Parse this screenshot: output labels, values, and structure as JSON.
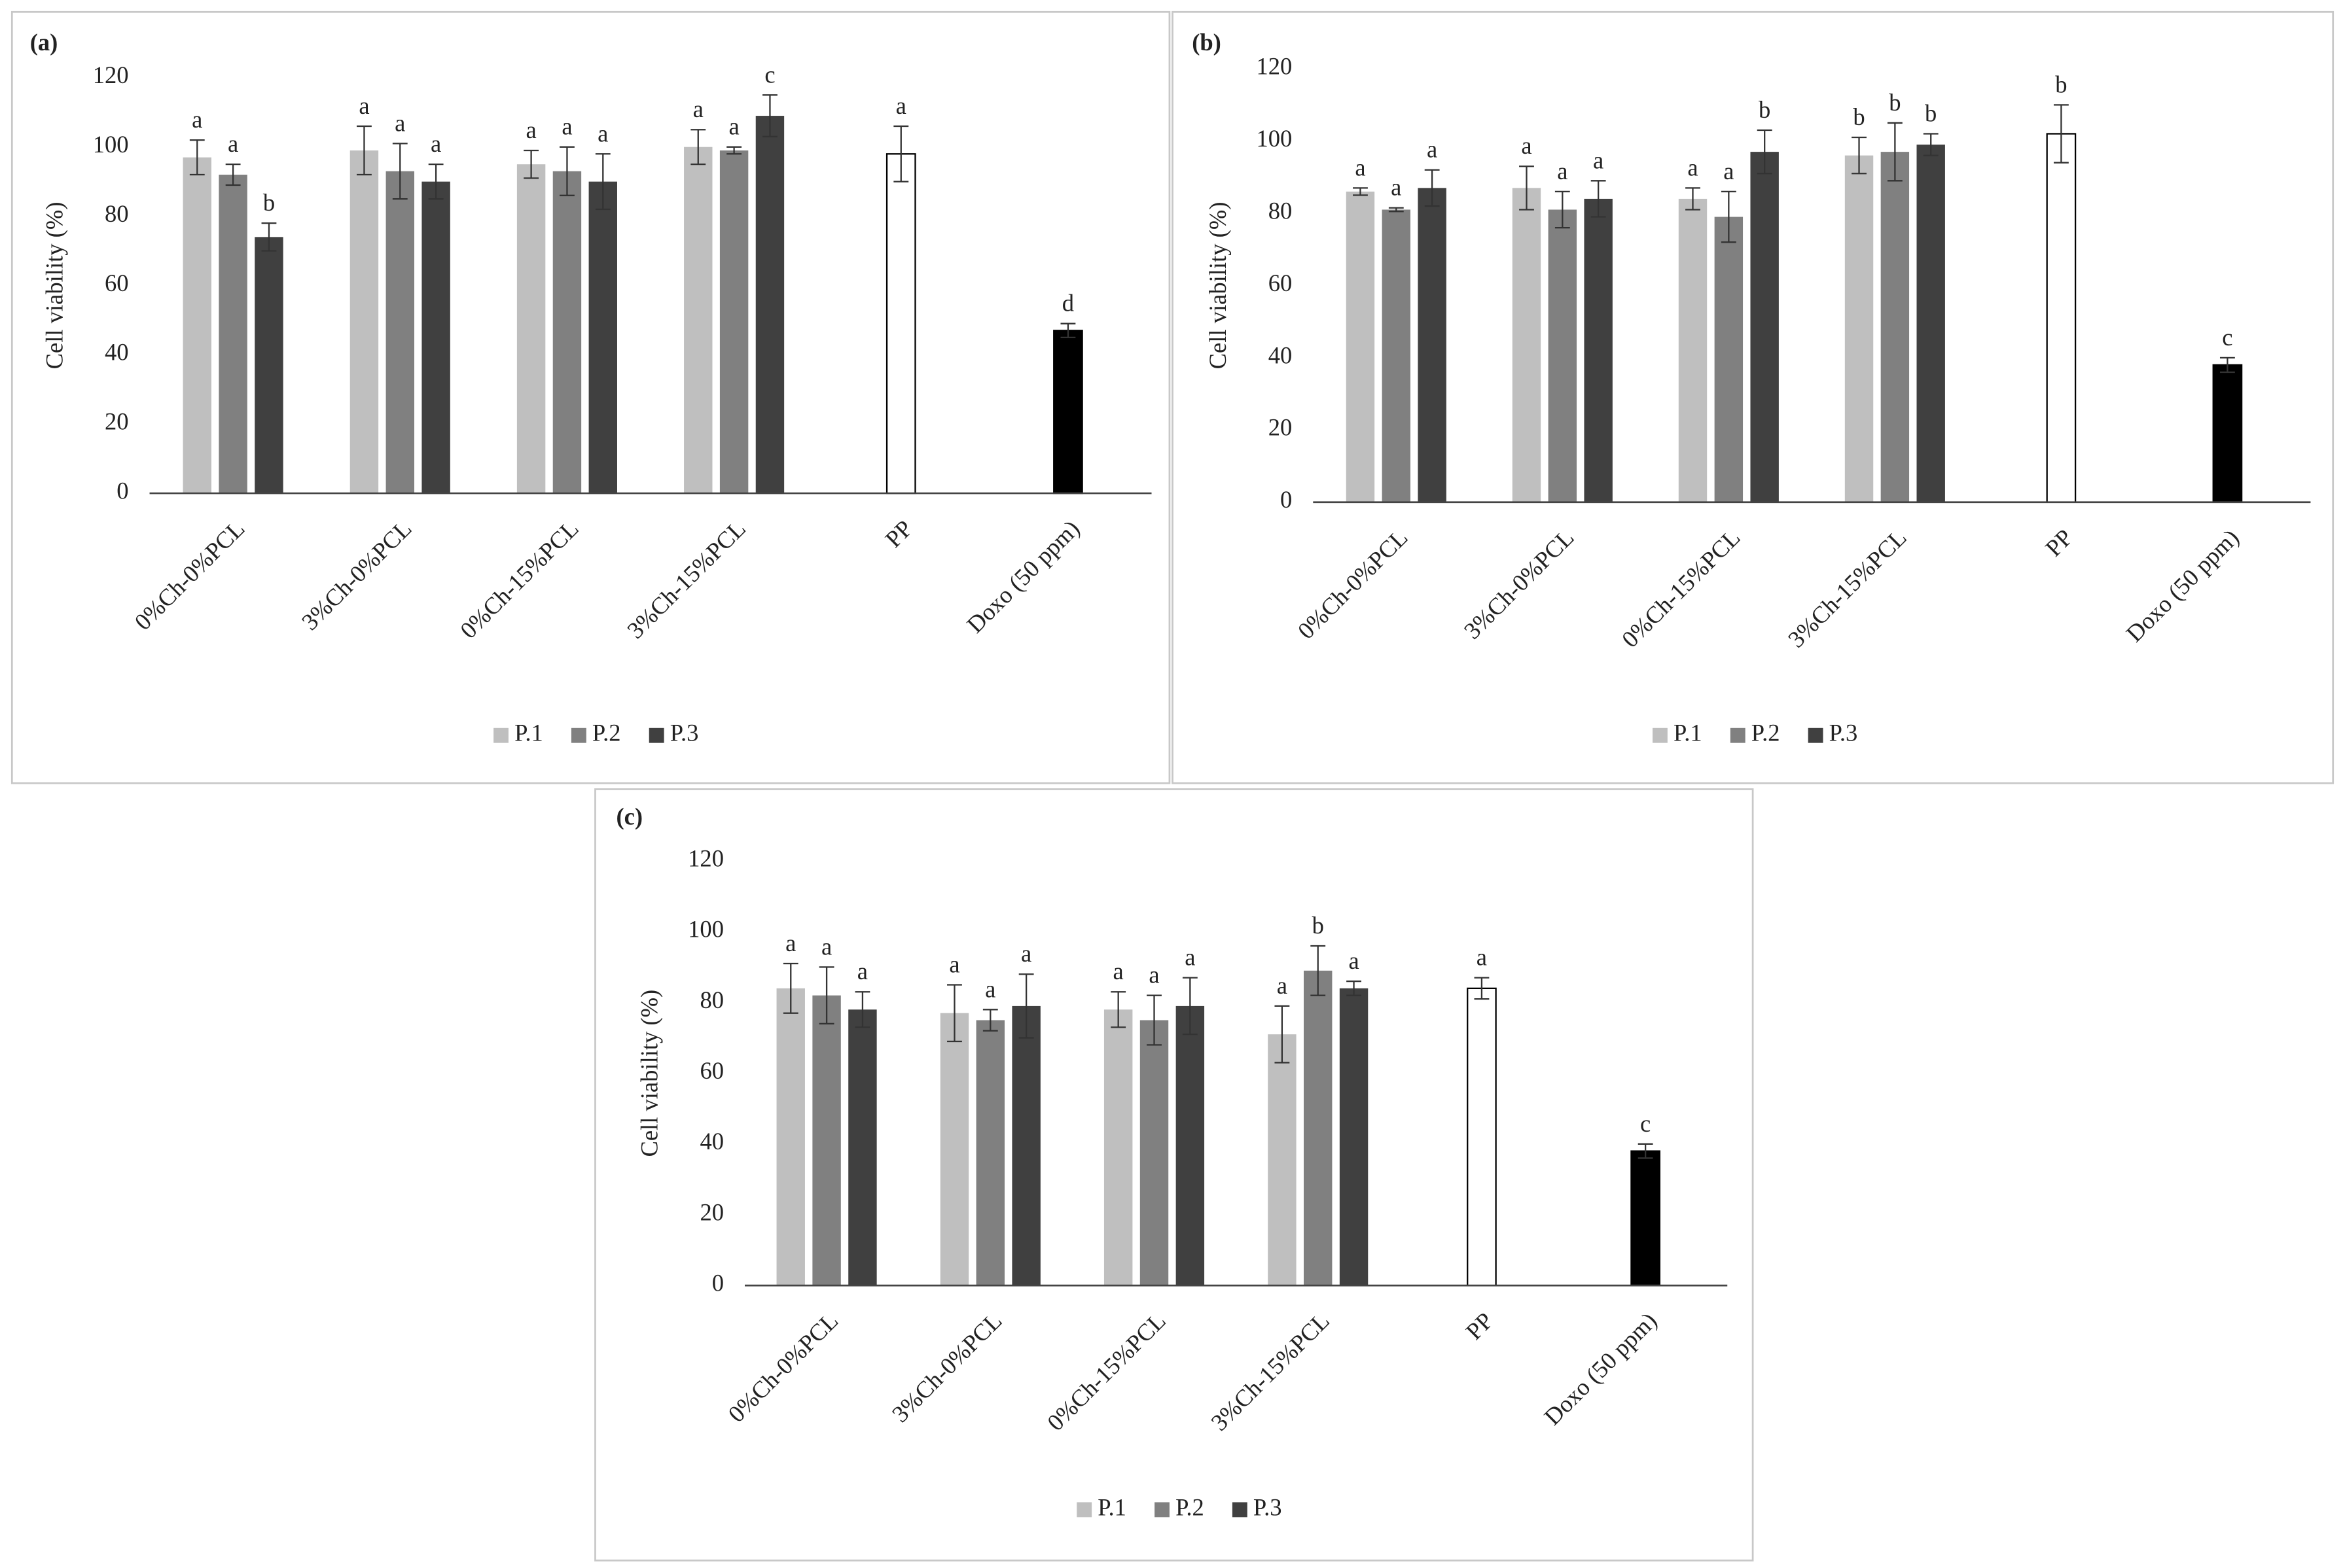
{
  "chart_data": [
    {
      "type": "bar",
      "label": "(a)",
      "ylabel": "Cell viability (%)",
      "categories": [
        "0%Ch-0%PCL",
        "3%Ch-0%PCL",
        "0%Ch-15%PCL",
        "3%Ch-15%PCL",
        "PP",
        "Doxo (50 ppm)"
      ],
      "ylim": [
        0,
        120
      ],
      "yticks": [
        0,
        20,
        40,
        60,
        80,
        100,
        120
      ],
      "series": [
        {
          "name": "P.1",
          "color": "#bfbfbf",
          "values": [
            97,
            99,
            95,
            100,
            null,
            null
          ],
          "errors": [
            5,
            7,
            4,
            5,
            null,
            null
          ],
          "letters": [
            "a",
            "a",
            "a",
            "a",
            null,
            null
          ]
        },
        {
          "name": "P.2",
          "color": "#808080",
          "values": [
            92,
            93,
            93,
            99,
            null,
            null
          ],
          "errors": [
            3,
            8,
            7,
            1,
            null,
            null
          ],
          "letters": [
            "a",
            "a",
            "a",
            "a",
            null,
            null
          ]
        },
        {
          "name": "P.3",
          "color": "#404040",
          "values": [
            74,
            90,
            90,
            109,
            null,
            null
          ],
          "errors": [
            4,
            5,
            8,
            6,
            null,
            null
          ],
          "letters": [
            "b",
            "a",
            "a",
            "c",
            null,
            null
          ]
        },
        {
          "colors": [
            null,
            null,
            null,
            null,
            "#ffffff",
            "#000000"
          ],
          "values": [
            null,
            null,
            null,
            null,
            98,
            47
          ],
          "errors": [
            null,
            null,
            null,
            null,
            8,
            2
          ],
          "letters": [
            null,
            null,
            null,
            null,
            "a",
            "d"
          ]
        }
      ]
    },
    {
      "type": "bar",
      "label": "(b)",
      "ylabel": "Cell viability (%)",
      "categories": [
        "0%Ch-0%PCL",
        "3%Ch-0%PCL",
        "0%Ch-15%PCL",
        "3%Ch-15%PCL",
        "PP",
        "Doxo (50 ppm)"
      ],
      "ylim": [
        0,
        120
      ],
      "yticks": [
        0,
        20,
        40,
        60,
        80,
        100,
        120
      ],
      "series": [
        {
          "name": "P.1",
          "color": "#bfbfbf",
          "values": [
            86,
            87,
            84,
            96,
            null,
            null
          ],
          "errors": [
            1,
            6,
            3,
            5,
            null,
            null
          ],
          "letters": [
            "a",
            "a",
            "a",
            "b",
            null,
            null
          ]
        },
        {
          "name": "P.2",
          "color": "#808080",
          "values": [
            81,
            81,
            79,
            97,
            null,
            null
          ],
          "errors": [
            0.5,
            5,
            7,
            8,
            null,
            null
          ],
          "letters": [
            "a",
            "a",
            "a",
            "b",
            null,
            null
          ]
        },
        {
          "name": "P.3",
          "color": "#404040",
          "values": [
            87,
            84,
            97,
            99,
            null,
            null
          ],
          "errors": [
            5,
            5,
            6,
            3,
            null,
            null
          ],
          "letters": [
            "a",
            "a",
            "b",
            "b",
            null,
            null
          ]
        },
        {
          "colors": [
            null,
            null,
            null,
            null,
            "#ffffff",
            "#000000"
          ],
          "values": [
            null,
            null,
            null,
            null,
            102,
            38
          ],
          "errors": [
            null,
            null,
            null,
            null,
            8,
            2
          ],
          "letters": [
            null,
            null,
            null,
            null,
            "b",
            "c"
          ]
        }
      ]
    },
    {
      "type": "bar",
      "label": "(c)",
      "ylabel": "Cell viability (%)",
      "categories": [
        "0%Ch-0%PCL",
        "3%Ch-0%PCL",
        "0%Ch-15%PCL",
        "3%Ch-15%PCL",
        "PP",
        "Doxo (50 ppm)"
      ],
      "ylim": [
        0,
        120
      ],
      "yticks": [
        0,
        20,
        40,
        60,
        80,
        100,
        120
      ],
      "series": [
        {
          "name": "P.1",
          "color": "#bfbfbf",
          "values": [
            84,
            77,
            78,
            71,
            null,
            null
          ],
          "errors": [
            7,
            8,
            5,
            8,
            null,
            null
          ],
          "letters": [
            "a",
            "a",
            "a",
            "a",
            null,
            null
          ]
        },
        {
          "name": "P.2",
          "color": "#808080",
          "values": [
            82,
            75,
            75,
            89,
            null,
            null
          ],
          "errors": [
            8,
            3,
            7,
            7,
            null,
            null
          ],
          "letters": [
            "a",
            "a",
            "a",
            "b",
            null,
            null
          ]
        },
        {
          "name": "P.3",
          "color": "#404040",
          "values": [
            78,
            79,
            79,
            84,
            null,
            null
          ],
          "errors": [
            5,
            9,
            8,
            2,
            null,
            null
          ],
          "letters": [
            "a",
            "a",
            "a",
            "a",
            null,
            null
          ]
        },
        {
          "colors": [
            null,
            null,
            null,
            null,
            "#ffffff",
            "#000000"
          ],
          "values": [
            null,
            null,
            null,
            null,
            84,
            38
          ],
          "errors": [
            null,
            null,
            null,
            null,
            3,
            2
          ],
          "letters": [
            null,
            null,
            null,
            null,
            "a",
            "c"
          ]
        }
      ]
    }
  ]
}
